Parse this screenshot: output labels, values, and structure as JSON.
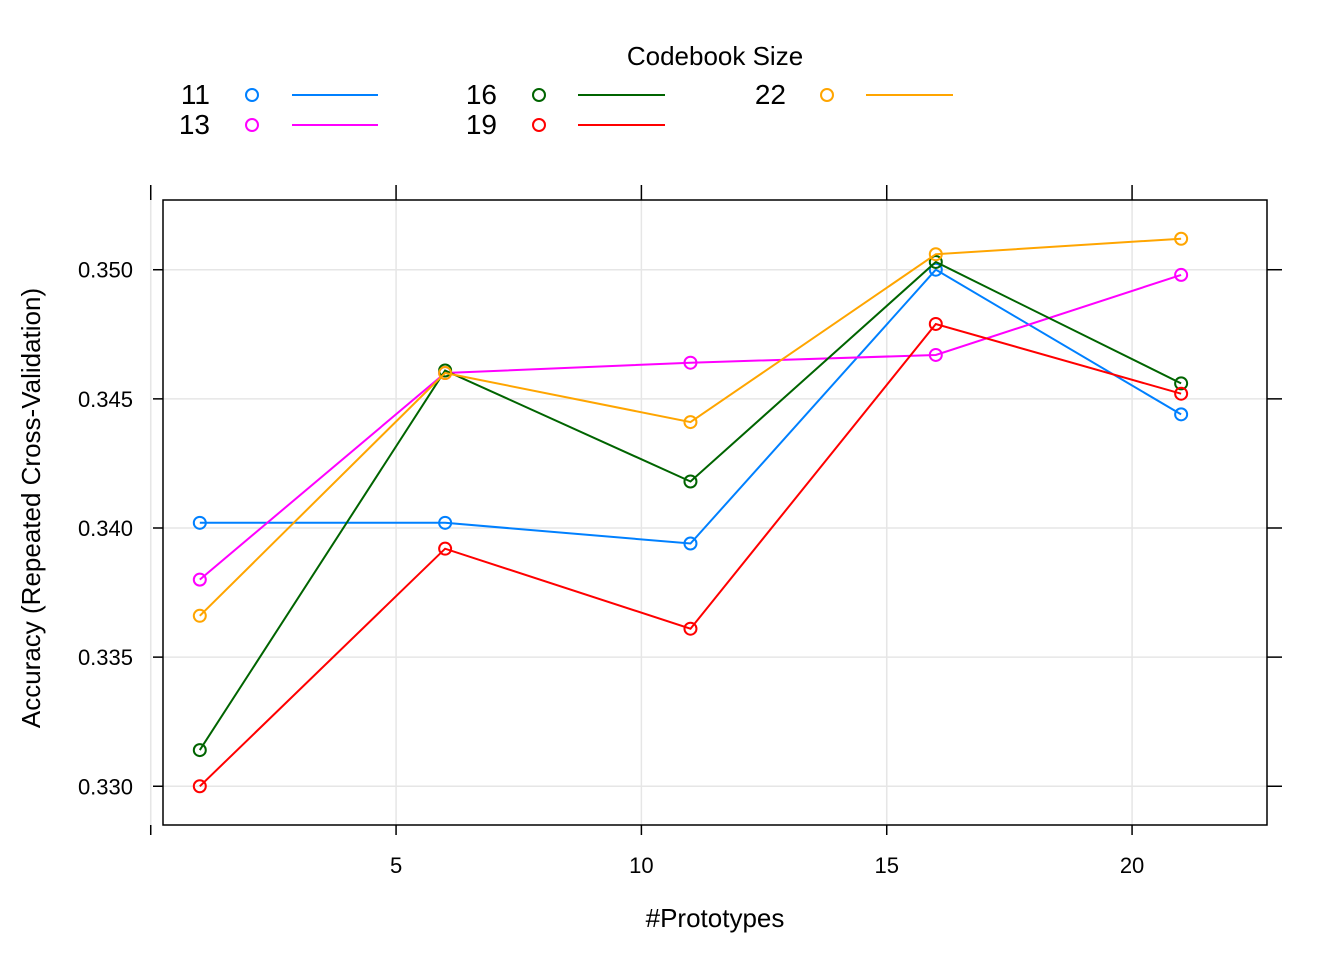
{
  "chart_data": {
    "type": "line",
    "legend": {
      "title": "Codebook Size",
      "position": "top",
      "columns": 3
    },
    "xlabel": "#Prototypes",
    "ylabel": "Accuracy (Repeated Cross-Validation)",
    "xlim": [
      0.25,
      22.75
    ],
    "ylim": [
      0.3285,
      0.3527
    ],
    "xticks": [
      5,
      10,
      15,
      20
    ],
    "yticks": [
      0.33,
      0.335,
      0.34,
      0.345,
      0.35
    ],
    "xtick_labels": [
      "5",
      "10",
      "15",
      "20"
    ],
    "ytick_labels": [
      "0.330",
      "0.335",
      "0.340",
      "0.345",
      "0.350"
    ],
    "grid": true,
    "x": [
      1,
      6,
      11,
      16,
      21
    ],
    "series": [
      {
        "name": "11",
        "color": "#0080ff",
        "values": [
          0.3402,
          0.3402,
          0.3394,
          0.35,
          0.3444
        ]
      },
      {
        "name": "13",
        "color": "#ff00ff",
        "values": [
          0.338,
          0.346,
          0.3464,
          0.3467,
          0.3498
        ]
      },
      {
        "name": "16",
        "color": "#006400",
        "values": [
          0.3314,
          0.3461,
          0.3418,
          0.3503,
          0.3456
        ]
      },
      {
        "name": "19",
        "color": "#ff0000",
        "values": [
          0.33,
          0.3392,
          0.3361,
          0.3479,
          0.3452
        ]
      },
      {
        "name": "22",
        "color": "#ffa500",
        "values": [
          0.3366,
          0.346,
          0.3441,
          0.3506,
          0.3512
        ]
      }
    ]
  }
}
